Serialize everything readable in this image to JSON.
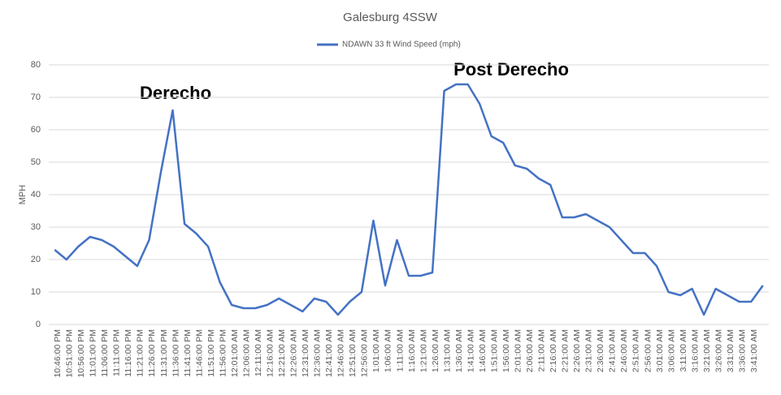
{
  "chart_data": {
    "type": "line",
    "title": "Galesburg 4SSW",
    "y_label": "MPH",
    "categories": [
      "10:46:00 PM",
      "10:51:00 PM",
      "10:56:00 PM",
      "11:01:00 PM",
      "11:06:00 PM",
      "11:11:00 PM",
      "11:16:00 PM",
      "11:21:00 PM",
      "11:26:00 PM",
      "11:31:00 PM",
      "11:36:00 PM",
      "11:41:00 PM",
      "11:46:00 PM",
      "11:51:00 PM",
      "11:56:00 PM",
      "12:01:00 AM",
      "12:06:00 AM",
      "12:11:00 AM",
      "12:16:00 AM",
      "12:21:00 AM",
      "12:26:00 AM",
      "12:31:00 AM",
      "12:36:00 AM",
      "12:41:00 AM",
      "12:46:00 AM",
      "12:51:00 AM",
      "12:56:00 AM",
      "1:01:00 AM",
      "1:06:00 AM",
      "1:11:00 AM",
      "1:16:00 AM",
      "1:21:00 AM",
      "1:26:00 AM",
      "1:31:00 AM",
      "1:36:00 AM",
      "1:41:00 AM",
      "1:46:00 AM",
      "1:51:00 AM",
      "1:56:00 AM",
      "2:01:00 AM",
      "2:06:00 AM",
      "2:11:00 AM",
      "2:16:00 AM",
      "2:21:00 AM",
      "2:26:00 AM",
      "2:31:00 AM",
      "2:36:00 AM",
      "2:41:00 AM",
      "2:46:00 AM",
      "2:51:00 AM",
      "2:56:00 AM",
      "3:01:00 AM",
      "3:06:00 AM",
      "3:11:00 AM",
      "3:16:00 AM",
      "3:21:00 AM",
      "3:26:00 AM",
      "3:31:00 AM",
      "3:36:00 AM",
      "3:41:00 AM",
      null
    ],
    "series": [
      {
        "name": "NDAWN 33 ft Wind Speed (mph)",
        "color": "#4472c4",
        "values": [
          23,
          20,
          24,
          27,
          26,
          24,
          21,
          18,
          26,
          47,
          66,
          31,
          28,
          24,
          13,
          6,
          5,
          5,
          6,
          8,
          6,
          4,
          8,
          7,
          3,
          7,
          10,
          32,
          12,
          26,
          15,
          15,
          16,
          72,
          74,
          74,
          68,
          58,
          56,
          49,
          48,
          45,
          43,
          33,
          33,
          34,
          32,
          30,
          26,
          22,
          22,
          18,
          10,
          9,
          11,
          3,
          11,
          9,
          7,
          7,
          12
        ]
      }
    ],
    "ylim": [
      0,
      80
    ],
    "yticks": [
      0,
      10,
      20,
      30,
      40,
      50,
      60,
      70,
      80
    ],
    "grid": true,
    "legend": "top",
    "annotations": [
      "Derecho",
      "Post Derecho"
    ]
  }
}
